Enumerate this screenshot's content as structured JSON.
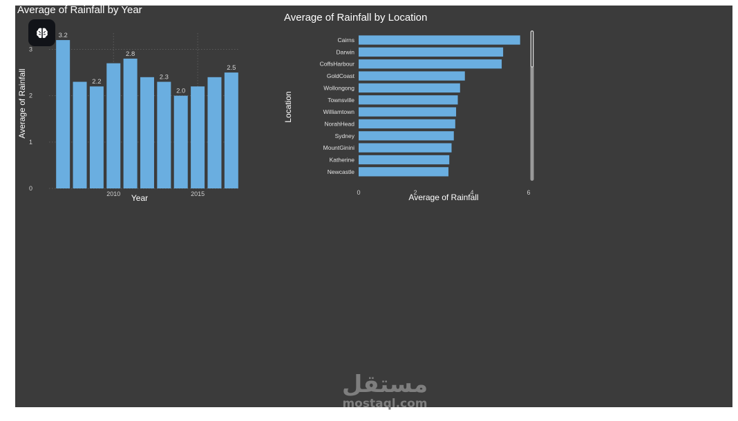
{
  "charts": {
    "year_chart": {
      "title": "Average of Rainfall by Year",
      "xlabel": "Year",
      "ylabel": "Average of Rainfall"
    },
    "location_chart": {
      "title": "Average of Rainfall by Location",
      "xlabel": "Average of Rainfall",
      "ylabel": "Location"
    }
  },
  "watermark": {
    "arabic": "مستقل",
    "latin": "mostaql.com"
  },
  "chart_data": [
    {
      "type": "bar",
      "title": "Average of Rainfall by Year",
      "xlabel": "Year",
      "ylabel": "Average of Rainfall",
      "x": [
        2007,
        2008,
        2009,
        2010,
        2011,
        2012,
        2013,
        2014,
        2015,
        2016,
        2017
      ],
      "values": [
        3.2,
        2.3,
        2.2,
        2.7,
        2.8,
        2.4,
        2.3,
        2.0,
        2.2,
        2.4,
        2.5
      ],
      "data_labels": [
        {
          "index": 0,
          "text": "3.2"
        },
        {
          "index": 2,
          "text": "2.2"
        },
        {
          "index": 4,
          "text": "2.8"
        },
        {
          "index": 6,
          "text": "2.3"
        },
        {
          "index": 7,
          "text": "2.0"
        },
        {
          "index": 10,
          "text": "2.5"
        }
      ],
      "x_ticks": [
        2010,
        2015
      ],
      "y_ticks": [
        0,
        1,
        2,
        3
      ],
      "ylim": [
        0,
        3.35
      ],
      "grid": true,
      "color": "#6aaee0"
    },
    {
      "type": "bar",
      "orientation": "horizontal",
      "title": "Average of Rainfall by Location",
      "xlabel": "Average of Rainfall",
      "ylabel": "Location",
      "categories": [
        "Cairns",
        "Darwin",
        "CoffsHarbour",
        "GoldCoast",
        "Wollongong",
        "Townsville",
        "Williamtown",
        "NorahHead",
        "Sydney",
        "MountGinini",
        "Katherine",
        "Newcastle"
      ],
      "values": [
        5.7,
        5.1,
        5.05,
        3.75,
        3.58,
        3.5,
        3.44,
        3.41,
        3.36,
        3.28,
        3.2,
        3.17
      ],
      "x_ticks": [
        0,
        2,
        4,
        6
      ],
      "xlim": [
        0,
        6
      ],
      "grid": false,
      "color": "#6aaee0"
    }
  ]
}
